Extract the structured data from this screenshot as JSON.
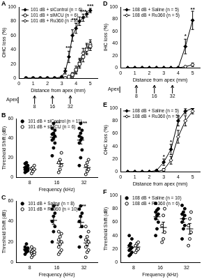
{
  "chart_data": [
    {
      "title": "A",
      "type": "line",
      "x_label": "Distance from apex (mm)",
      "y_label": "OHC loss (%)",
      "xlim": [
        0,
        5.5
      ],
      "xticks": [
        0,
        1,
        2,
        3,
        4,
        5
      ],
      "ylim": [
        0,
        100
      ],
      "yticks": [
        0,
        20,
        40,
        60,
        80,
        100
      ],
      "grid": false,
      "legend": "upper left",
      "x": [
        0.5,
        1,
        1.5,
        2,
        2.5,
        3,
        3.25,
        3.5,
        3.75,
        4,
        4.25,
        4.5,
        4.75,
        5
      ],
      "series": [
        {
          "name": "101 dB + siControl (n = 6)",
          "color": "#000000",
          "marker": "diamond",
          "line_style": "solid",
          "values": [
            0,
            0,
            0,
            0,
            0,
            2,
            10,
            30,
            60,
            70,
            80,
            85,
            90,
            95
          ],
          "errors": [
            0,
            0,
            0,
            0,
            0,
            1,
            4,
            8,
            8,
            7,
            6,
            5,
            4,
            3
          ]
        },
        {
          "name": "101 dB + siMCU (n = 6)",
          "color": "#000000",
          "marker": "circle-open",
          "line_style": "solid",
          "values": [
            0,
            0,
            0,
            0,
            0,
            0,
            0,
            2,
            5,
            12,
            20,
            30,
            40,
            45
          ],
          "errors": [
            0,
            0,
            0,
            0,
            0,
            0,
            0,
            1,
            3,
            5,
            6,
            7,
            7,
            6
          ]
        },
        {
          "name": "101 dB + Ru360 (n = 8)",
          "color": "#000000",
          "marker": "diamond-open",
          "line_style": "solid",
          "values": [
            0,
            0,
            0,
            0,
            0,
            0,
            0,
            0,
            3,
            10,
            22,
            35,
            42,
            48
          ],
          "errors": [
            0,
            0,
            0,
            0,
            0,
            0,
            0,
            0,
            2,
            4,
            6,
            7,
            7,
            6
          ]
        }
      ],
      "annotations": [
        {
          "x": 3.5,
          "y": 42,
          "text": "***"
        },
        {
          "x": 3.9,
          "y": 82,
          "text": "***"
        },
        {
          "x": 4.5,
          "y": 93,
          "text": "***"
        },
        {
          "x": 5,
          "y": 101,
          "text": "***"
        }
      ],
      "frequency_axis": {
        "apex": "Apex",
        "positions": [
          1.1,
          2.35,
          3.6
        ],
        "labels": [
          8,
          16,
          32
        ]
      }
    },
    {
      "title": "B",
      "type": "scatter",
      "x_label": "Frequency (kHz)",
      "y_label": "Threshold Shift (dB)",
      "categories": [
        8,
        16,
        32
      ],
      "ylim": [
        0,
        60
      ],
      "yticks": [
        0,
        20,
        40,
        60
      ],
      "grid": false,
      "legend": "upper left",
      "series": [
        {
          "name": "101 dB + siControl (n = 11)",
          "color": "#000000",
          "marker": "circle",
          "points": [
            [
              5,
              6,
              7,
              8,
              8,
              9,
              10,
              11,
              12,
              14,
              15
            ],
            [
              22,
              30,
              35,
              38,
              40,
              42,
              44,
              45,
              48,
              50,
              55
            ],
            [
              12,
              20,
              28,
              35,
              38,
              40,
              42,
              45,
              48,
              50,
              55
            ]
          ],
          "mean": [
            10,
            41,
            38
          ],
          "sem": [
            1,
            3,
            4
          ]
        },
        {
          "name": "101 dB + siMCU (n = 6)",
          "color": "#000000",
          "marker": "circle-open",
          "points": [
            [
              4,
              6,
              8,
              9,
              10,
              12
            ],
            [
              5,
              8,
              12,
              15,
              18,
              25
            ],
            [
              3,
              6,
              8,
              12,
              15,
              18
            ]
          ],
          "mean": [
            8,
            14,
            10
          ],
          "sem": [
            1,
            3,
            2
          ]
        }
      ],
      "annotations": [
        {
          "x": 16,
          "y": 55,
          "text": "***"
        },
        {
          "x": 32,
          "y": 55,
          "text": "***"
        }
      ]
    },
    {
      "title": "C",
      "type": "scatter",
      "x_label": "Frequency (kHz)",
      "y_label": "Threshold Shift (dB)",
      "categories": [
        8,
        16,
        32
      ],
      "ylim": [
        0,
        60
      ],
      "yticks": [
        0,
        20,
        40,
        60
      ],
      "grid": false,
      "legend": "upper left",
      "series": [
        {
          "name": "101 dB + Saline (n = 8)",
          "color": "#000000",
          "marker": "circle",
          "points": [
            [
              8,
              10,
              11,
              12,
              13,
              14,
              15,
              18
            ],
            [
              20,
              30,
              35,
              40,
              45,
              48,
              52,
              55
            ],
            [
              15,
              25,
              35,
              40,
              45,
              48,
              52,
              55
            ]
          ],
          "mean": [
            13,
            41,
            39
          ],
          "sem": [
            1,
            4,
            5
          ]
        },
        {
          "name": "101 dB + Ru360 (n = 10)",
          "color": "#000000",
          "marker": "circle-open",
          "points": [
            [
              5,
              7,
              8,
              9,
              10,
              10,
              11,
              12,
              13,
              15
            ],
            [
              8,
              10,
              12,
              15,
              18,
              20,
              22,
              25,
              28,
              30
            ],
            [
              5,
              10,
              12,
              15,
              18,
              20,
              22,
              25,
              30,
              35
            ]
          ],
          "mean": [
            10,
            19,
            19
          ],
          "sem": [
            1,
            2,
            3
          ]
        }
      ],
      "annotations": [
        {
          "x": 16,
          "y": 55,
          "text": "**"
        },
        {
          "x": 32,
          "y": 55,
          "text": "**"
        }
      ]
    },
    {
      "title": "D",
      "type": "line",
      "x_label": "Distance from apex (mm)",
      "y_label": "IHC loss (%)",
      "xlim": [
        0,
        5.5
      ],
      "xticks": [
        0,
        1,
        2,
        3,
        4,
        5
      ],
      "ylim": [
        0,
        100
      ],
      "yticks": [
        0,
        20,
        40,
        60,
        80,
        100
      ],
      "grid": false,
      "legend": "upper left",
      "x": [
        0.5,
        1,
        1.5,
        2,
        2.5,
        3,
        3.5,
        4,
        4.5,
        5
      ],
      "series": [
        {
          "name": "108 dB + Saline (n = 5)",
          "color": "#000000",
          "marker": "diamond",
          "line_style": "solid",
          "values": [
            0,
            0,
            0,
            0,
            0,
            0,
            0,
            0,
            35,
            78
          ],
          "errors": [
            0,
            0,
            0,
            0,
            0,
            0,
            0,
            0,
            12,
            15
          ]
        },
        {
          "name": "108 dB + Ru360 (n = 5)",
          "color": "#000000",
          "marker": "diamond-open",
          "line_style": "solid",
          "values": [
            0,
            0,
            0,
            0,
            0,
            0,
            0,
            0,
            2,
            5
          ],
          "errors": [
            0,
            0,
            0,
            0,
            0,
            0,
            0,
            0,
            1,
            3
          ]
        }
      ],
      "annotations": [
        {
          "x": 4.5,
          "y": 52,
          "text": "*"
        },
        {
          "x": 5,
          "y": 96,
          "text": "**"
        }
      ],
      "frequency_axis": {
        "apex": "Apex",
        "positions": [
          1.1,
          2.35,
          3.6
        ],
        "labels": [
          8,
          16,
          32
        ]
      }
    },
    {
      "title": "E",
      "type": "line",
      "x_label": "Distance from apex (mm)",
      "y_label": "OHC loss (%)",
      "xlim": [
        0,
        5.5
      ],
      "xticks": [
        0,
        1,
        2,
        3,
        4,
        5
      ],
      "ylim": [
        0,
        100
      ],
      "yticks": [
        0,
        20,
        40,
        60,
        80,
        100
      ],
      "grid": false,
      "legend": "upper left",
      "x": [
        0.5,
        1,
        1.5,
        2,
        2.5,
        3,
        3.5,
        4,
        4.5,
        5
      ],
      "series": [
        {
          "name": "108 dB + Saline (n = 5)",
          "color": "#000000",
          "marker": "diamond",
          "line_style": "solid",
          "values": [
            0,
            0,
            0,
            0,
            2,
            15,
            35,
            80,
            95,
            100
          ],
          "errors": [
            0,
            0,
            0,
            0,
            1,
            5,
            8,
            8,
            4,
            0
          ]
        },
        {
          "name": "108 dB + Ru360 (n = 5)",
          "color": "#000000",
          "marker": "diamond-open",
          "line_style": "solid",
          "values": [
            0,
            0,
            0,
            0,
            0,
            3,
            18,
            55,
            80,
            95
          ],
          "errors": [
            0,
            0,
            0,
            0,
            0,
            2,
            6,
            10,
            8,
            4
          ]
        }
      ],
      "annotations": [
        {
          "x": 3,
          "y": 24,
          "text": "*"
        },
        {
          "x": 3.5,
          "y": 47,
          "text": "*"
        }
      ]
    },
    {
      "title": "F",
      "type": "scatter",
      "x_label": "Frequency (kHz)",
      "y_label": "Threshold Shift (dB)",
      "categories": [
        8,
        16,
        32
      ],
      "ylim": [
        0,
        100
      ],
      "yticks": [
        0,
        20,
        40,
        60,
        80,
        100
      ],
      "grid": false,
      "legend": "upper left",
      "series": [
        {
          "name": "108 dB + Saline (n = 10)",
          "color": "#000000",
          "marker": "circle",
          "points": [
            [
              10,
              12,
              15,
              18,
              20,
              22,
              25,
              28,
              35,
              40
            ],
            [
              40,
              50,
              60,
              65,
              70,
              72,
              75,
              78,
              80,
              88
            ],
            [
              35,
              50,
              55,
              60,
              65,
              70,
              72,
              75,
              80,
              85
            ]
          ],
          "mean": [
            22,
            68,
            65
          ],
          "sem": [
            3,
            4,
            5
          ]
        },
        {
          "name": "108 dB + Ru360 (n = 6)",
          "color": "#000000",
          "marker": "circle-open",
          "points": [
            [
              15,
              18,
              20,
              25,
              28,
              30
            ],
            [
              30,
              35,
              45,
              55,
              70,
              80
            ],
            [
              25,
              35,
              45,
              55,
              65,
              75
            ]
          ],
          "mean": [
            23,
            52,
            50
          ],
          "sem": [
            3,
            8,
            8
          ]
        }
      ],
      "annotations": []
    }
  ]
}
